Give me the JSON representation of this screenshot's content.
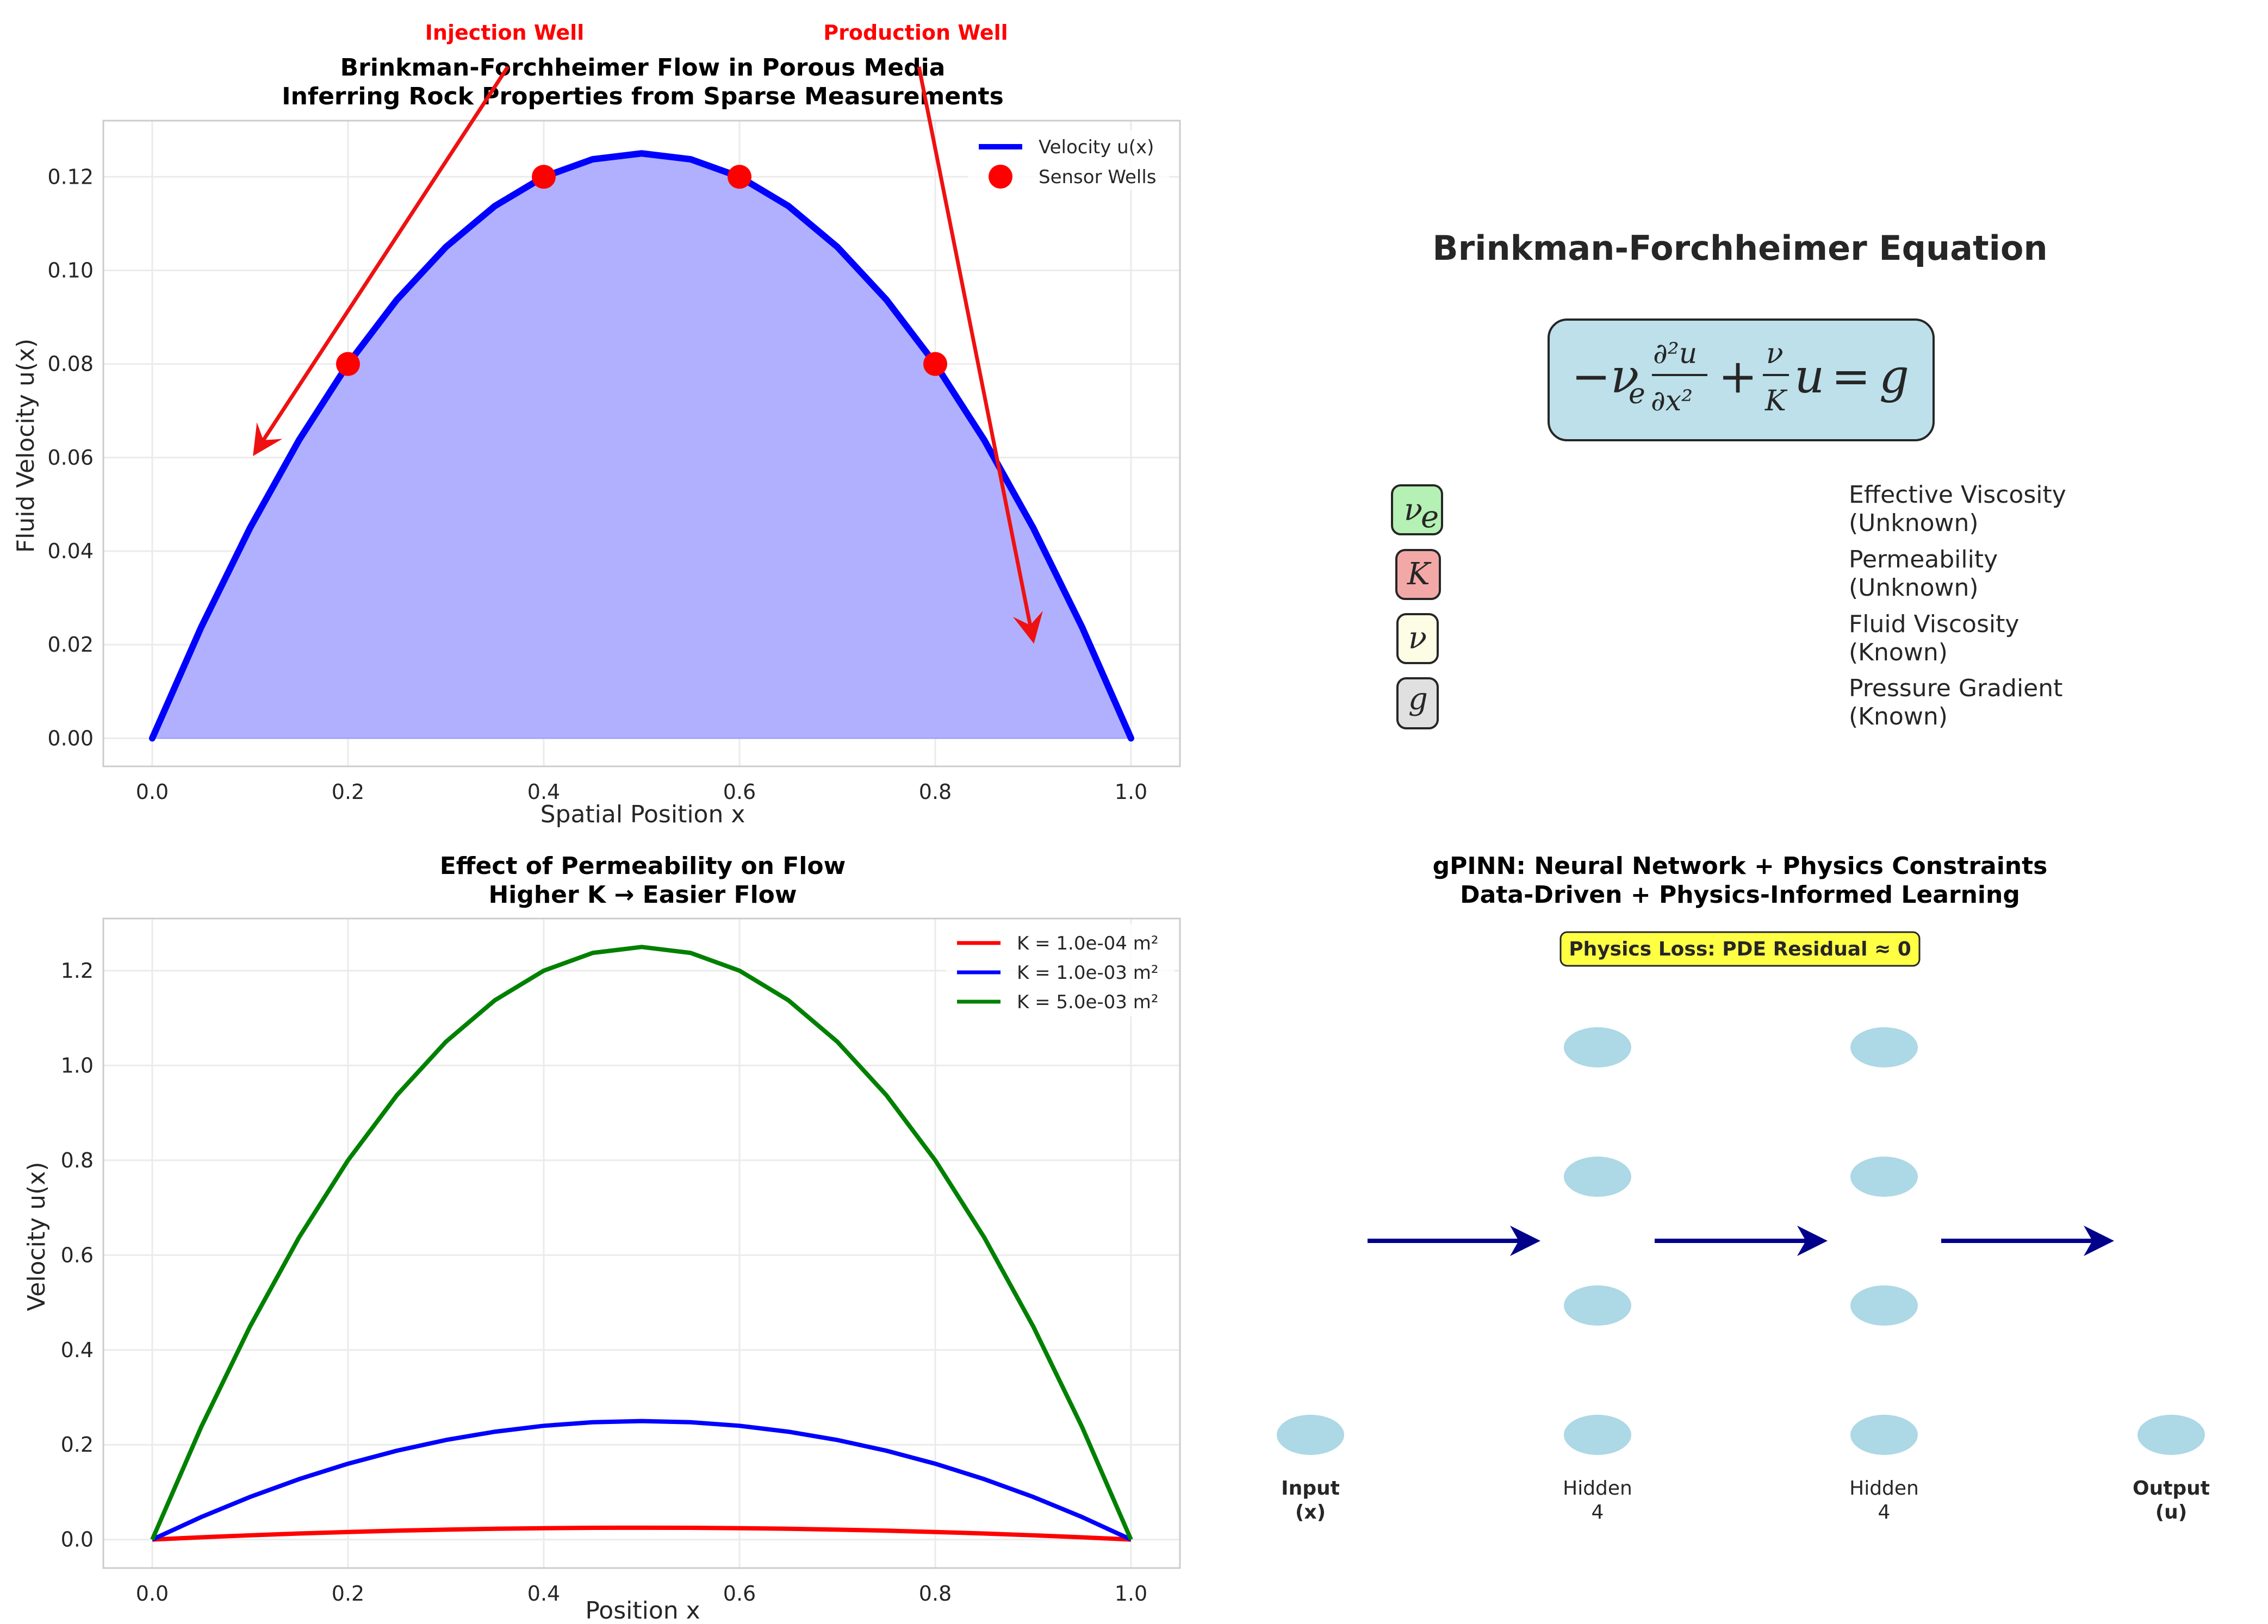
{
  "chart_data": [
    {
      "type": "line",
      "title": "Brinkman-Forchheimer Flow in Porous Media",
      "subtitle": "Inferring Rock Properties from Sparse Measurements",
      "xlabel": "Spatial Position x",
      "ylabel": "Fluid Velocity u(x)",
      "xlim": [
        -0.05,
        1.05
      ],
      "ylim": [
        -0.006,
        0.132
      ],
      "xticks": [
        0.0,
        0.2,
        0.4,
        0.6,
        0.8,
        1.0
      ],
      "xtick_labels": [
        "0.0",
        "0.2",
        "0.4",
        "0.6",
        "0.8",
        "1.0"
      ],
      "yticks": [
        0.0,
        0.02,
        0.04,
        0.06,
        0.08,
        0.1,
        0.12
      ],
      "ytick_labels": [
        "0.00",
        "0.02",
        "0.04",
        "0.06",
        "0.08",
        "0.10",
        "0.12"
      ],
      "grid": true,
      "legend_position": "top-right",
      "series": [
        {
          "name": "Velocity u(x)",
          "kind": "line",
          "color": "#0000ff",
          "fill": "#b0b0ff",
          "x": [
            0.0,
            0.05,
            0.1,
            0.15,
            0.2,
            0.25,
            0.3,
            0.35,
            0.4,
            0.45,
            0.5,
            0.55,
            0.6,
            0.65,
            0.7,
            0.75,
            0.8,
            0.85,
            0.9,
            0.95,
            1.0
          ],
          "y": [
            0.0,
            0.02375,
            0.045,
            0.06375,
            0.08,
            0.09375,
            0.105,
            0.11375,
            0.12,
            0.12375,
            0.125,
            0.12375,
            0.12,
            0.11375,
            0.105,
            0.09375,
            0.08,
            0.06375,
            0.045,
            0.02375,
            0.0
          ]
        },
        {
          "name": "Sensor Wells",
          "kind": "scatter",
          "color": "#ff0000",
          "x": [
            0.2,
            0.4,
            0.6,
            0.8
          ],
          "y": [
            0.08,
            0.12,
            0.12,
            0.08
          ]
        }
      ],
      "annotations": [
        {
          "text": "Injection Well",
          "color": "#ff0000",
          "text_at": [
            0.37,
            0.147
          ],
          "arrow_to": [
            0.105,
            0.061
          ]
        },
        {
          "text": "Production Well",
          "color": "#ff0000",
          "text_at": [
            0.79,
            0.147
          ],
          "arrow_to": [
            0.9,
            0.021
          ]
        }
      ]
    },
    {
      "type": "line",
      "title": "Effect of Permeability on Flow",
      "subtitle": "Higher K → Easier Flow",
      "xlabel": "Position x",
      "ylabel": "Velocity u(x)",
      "xlim": [
        -0.05,
        1.05
      ],
      "ylim": [
        -0.06,
        1.31
      ],
      "xticks": [
        0.0,
        0.2,
        0.4,
        0.6,
        0.8,
        1.0
      ],
      "xtick_labels": [
        "0.0",
        "0.2",
        "0.4",
        "0.6",
        "0.8",
        "1.0"
      ],
      "yticks": [
        0.0,
        0.2,
        0.4,
        0.6,
        0.8,
        1.0,
        1.2
      ],
      "ytick_labels": [
        "0.0",
        "0.2",
        "0.4",
        "0.6",
        "0.8",
        "1.0",
        "1.2"
      ],
      "grid": true,
      "legend_position": "top-right",
      "x": [
        0.0,
        0.05,
        0.1,
        0.15,
        0.2,
        0.25,
        0.3,
        0.35,
        0.4,
        0.45,
        0.5,
        0.55,
        0.6,
        0.65,
        0.7,
        0.75,
        0.8,
        0.85,
        0.9,
        0.95,
        1.0
      ],
      "series": [
        {
          "name": "K = 1.0e-04 m²",
          "color": "#ff0000",
          "values": [
            0.0,
            0.0048,
            0.009,
            0.0128,
            0.016,
            0.0188,
            0.021,
            0.0228,
            0.024,
            0.0248,
            0.025,
            0.0248,
            0.024,
            0.0228,
            0.021,
            0.0188,
            0.016,
            0.0128,
            0.009,
            0.0048,
            0.0
          ]
        },
        {
          "name": "K = 1.0e-03 m²",
          "color": "#0000ff",
          "values": [
            0.0,
            0.0475,
            0.09,
            0.1275,
            0.16,
            0.1875,
            0.21,
            0.2275,
            0.24,
            0.2475,
            0.25,
            0.2475,
            0.24,
            0.2275,
            0.21,
            0.1875,
            0.16,
            0.1275,
            0.09,
            0.0475,
            0.0
          ]
        },
        {
          "name": "K = 5.0e-03 m²",
          "color": "#008000",
          "values": [
            0.0,
            0.2375,
            0.45,
            0.6375,
            0.8,
            0.9375,
            1.05,
            1.1375,
            1.2,
            1.2375,
            1.25,
            1.2375,
            1.2,
            1.1375,
            1.05,
            0.9375,
            0.8,
            0.6375,
            0.45,
            0.2375,
            0.0
          ]
        }
      ]
    }
  ],
  "equation_panel": {
    "title": "Brinkman-Forchheimer Equation",
    "box_color": "#bde0ea",
    "variables": [
      {
        "symbol": "ν",
        "subscript": "e",
        "color": "#b5f0b5",
        "name": "Effective Viscosity",
        "status": "(Unknown)"
      },
      {
        "symbol": "K",
        "subscript": "",
        "color": "#f3a8a8",
        "name": "Permeability",
        "status": "(Unknown)"
      },
      {
        "symbol": "ν",
        "subscript": "",
        "color": "#fdfde6",
        "name": "Fluid Viscosity",
        "status": "(Known)"
      },
      {
        "symbol": "g",
        "subscript": "",
        "color": "#e0e0e0",
        "name": "Pressure Gradient",
        "status": "(Known)"
      }
    ]
  },
  "network_panel": {
    "title": "gPINN: Neural Network + Physics Constraints",
    "subtitle": "Data-Driven + Physics-Informed Learning",
    "physics_loss": "Physics Loss: PDE Residual ≈ 0",
    "node_color": "#add8e6",
    "arrow_color": "#00008b",
    "layers": [
      {
        "name": "Input",
        "sub": "(x)",
        "nodes": 1,
        "bold": true
      },
      {
        "name": "Hidden",
        "sub": "4",
        "nodes": 4,
        "bold": false
      },
      {
        "name": "Hidden",
        "sub": "4",
        "nodes": 4,
        "bold": false
      },
      {
        "name": "Output",
        "sub": "(u)",
        "nodes": 1,
        "bold": true
      }
    ]
  }
}
